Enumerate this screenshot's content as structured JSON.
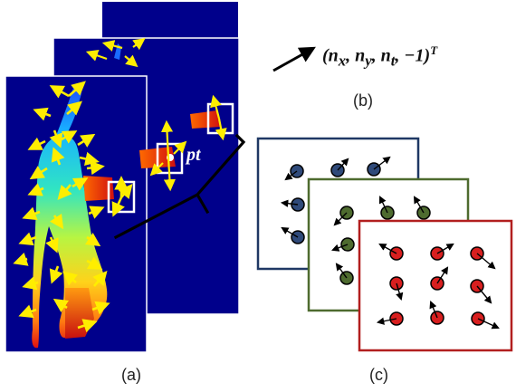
{
  "labels": {
    "a": "(a)",
    "b": "(b)",
    "c": "(c)",
    "pt": "pt"
  },
  "formula": {
    "open": "(",
    "nx": "n",
    "nx_sub": "x",
    "ny": "n",
    "ny_sub": "y",
    "nt": "n",
    "nt_sub": "t",
    "minus_one": "−1",
    "close": ")",
    "sup": "T"
  },
  "colors": {
    "background": "#ffffff",
    "depth_background": "#00008b",
    "arrow_yellow": "#ffee00",
    "highlight_box": "#ffffff",
    "panel_blue": "#1f3864",
    "panel_green": "#4e6b2f",
    "panel_red": "#b21f1f",
    "dot_blue": "#2f4a7a",
    "dot_green": "#4e6b2f",
    "dot_red": "#d81f1f"
  },
  "icons": {
    "vector_arrow": "arrow-up-right-icon",
    "bracket": "bracket-connector"
  }
}
